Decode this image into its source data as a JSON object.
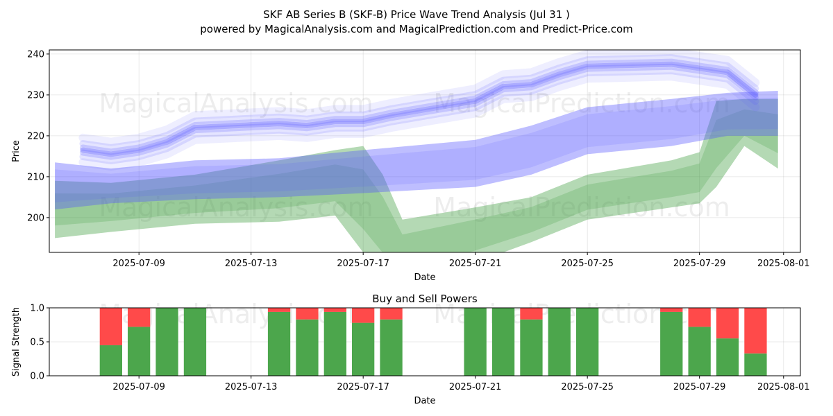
{
  "title_line1": "SKF AB Series B (SKF-B) Price Wave Trend Analysis (Jul 31 )",
  "title_line2": "powered by MagicalAnalysis.com and MagicalPrediction.com and Predict-Price.com",
  "watermarks": [
    "MagicalAnalysis.com",
    "MagicalPrediction.com"
  ],
  "colors": {
    "blue": "#5555ff",
    "green": "#3a9a3a",
    "buy": "#4ca64c",
    "sell": "#ff4a4a"
  },
  "chart_data": [
    {
      "type": "area",
      "title": "",
      "xlabel": "Date",
      "ylabel": "Price",
      "ylim": [
        191.5,
        241
      ],
      "xlim": [
        "2025-07-05.8",
        "2025-08-01.6"
      ],
      "x_ticks": [
        "2025-07-09",
        "2025-07-13",
        "2025-07-17",
        "2025-07-21",
        "2025-07-25",
        "2025-07-29",
        "2025-08-01"
      ],
      "y_ticks": [
        200,
        210,
        220,
        230,
        240
      ],
      "grid": true,
      "series": [
        {
          "color": "blue",
          "kind": "wave_line",
          "x": [
            "2025-07-07",
            "2025-07-08",
            "2025-07-09",
            "2025-07-10",
            "2025-07-11",
            "2025-07-14",
            "2025-07-15",
            "2025-07-16",
            "2025-07-17",
            "2025-07-18",
            "2025-07-21",
            "2025-07-22",
            "2025-07-23",
            "2025-07-24",
            "2025-07-25",
            "2025-07-28",
            "2025-07-29",
            "2025-07-30",
            "2025-07-31"
          ],
          "values": [
            216.5,
            215.5,
            216.5,
            218.5,
            222.0,
            223.0,
            222.5,
            223.5,
            223.5,
            225.0,
            228.5,
            232.0,
            232.5,
            235.0,
            237.0,
            237.5,
            236.5,
            235.5,
            230.0
          ]
        },
        {
          "color": "blue",
          "kind": "band",
          "x": [
            "2025-07-06",
            "2025-07-08",
            "2025-07-11",
            "2025-07-14",
            "2025-07-17",
            "2025-07-21",
            "2025-07-23",
            "2025-07-25",
            "2025-07-28",
            "2025-07-30",
            "2025-07-31.8"
          ],
          "upper": [
            213.5,
            212.0,
            214.0,
            214.5,
            216.5,
            219.0,
            222.5,
            227.0,
            229.0,
            230.5,
            231.0
          ],
          "lower": [
            202.0,
            203.5,
            204.5,
            205.0,
            206.0,
            207.5,
            210.5,
            215.5,
            217.5,
            220.0,
            220.0
          ]
        },
        {
          "color": "green",
          "kind": "band",
          "x": [
            "2025-07-06",
            "2025-07-08",
            "2025-07-11",
            "2025-07-14",
            "2025-07-16",
            "2025-07-17",
            "2025-07-17.7",
            "2025-07-18.4",
            "2025-07-21",
            "2025-07-23",
            "2025-07-25",
            "2025-07-28",
            "2025-07-29",
            "2025-07-29.6",
            "2025-07-30.6",
            "2025-07-31.8"
          ],
          "upper": [
            209.0,
            208.5,
            210.5,
            214.0,
            216.5,
            217.5,
            210.5,
            199.5,
            202.5,
            205.0,
            210.5,
            214.0,
            216.0,
            228.5,
            229.0,
            229.0
          ],
          "lower": [
            195.0,
            196.5,
            198.5,
            199.0,
            200.5,
            191.5,
            186.0,
            183.0,
            189.0,
            194.0,
            199.5,
            202.5,
            203.5,
            207.5,
            217.5,
            212.0
          ]
        }
      ]
    },
    {
      "type": "bar",
      "title": "Buy and Sell Powers",
      "xlabel": "Date",
      "ylabel": "Signal Strength",
      "ylim": [
        0,
        1
      ],
      "y_ticks": [
        "0.0",
        "0.5",
        "1.0"
      ],
      "x_ticks": [
        "2025-07-09",
        "2025-07-13",
        "2025-07-17",
        "2025-07-21",
        "2025-07-25",
        "2025-07-29",
        "2025-08-01"
      ],
      "grid": true,
      "dates": [
        "2025-07-08",
        "2025-07-09",
        "2025-07-10",
        "2025-07-11",
        "2025-07-14",
        "2025-07-15",
        "2025-07-16",
        "2025-07-17",
        "2025-07-18",
        "2025-07-21",
        "2025-07-22",
        "2025-07-23",
        "2025-07-24",
        "2025-07-25",
        "2025-07-28",
        "2025-07-29",
        "2025-07-30",
        "2025-07-31"
      ],
      "buy": [
        0.45,
        0.72,
        1.0,
        1.0,
        0.94,
        0.83,
        0.94,
        0.78,
        0.83,
        1.0,
        1.0,
        0.83,
        1.0,
        1.0,
        0.94,
        0.72,
        0.55,
        0.33
      ],
      "sell": [
        0.55,
        0.28,
        0.0,
        0.0,
        0.06,
        0.17,
        0.06,
        0.22,
        0.17,
        0.0,
        0.0,
        0.17,
        0.0,
        0.0,
        0.06,
        0.28,
        0.45,
        0.67
      ]
    }
  ]
}
